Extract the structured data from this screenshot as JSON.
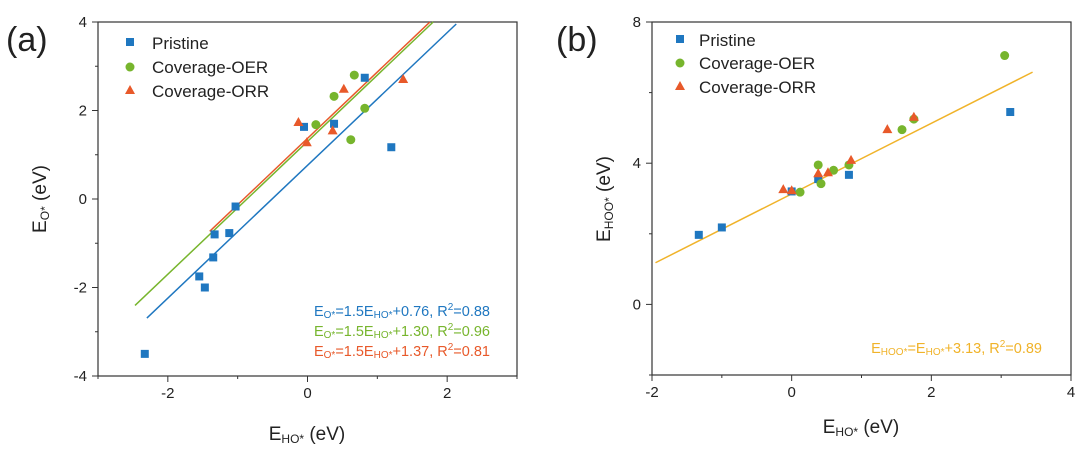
{
  "chart_data": [
    {
      "type": "scatter",
      "panel_label": "(a)",
      "xlabel": "E_HO* (eV)",
      "ylabel": "E_O* (eV)",
      "xlim": [
        -3,
        3
      ],
      "ylim": [
        -4,
        4
      ],
      "xticks": [
        -2,
        0,
        2
      ],
      "yticks": [
        -4,
        -2,
        0,
        2,
        4
      ],
      "series": [
        {
          "name": "Pristine",
          "marker": "square",
          "color": "#1f77c0",
          "points": [
            [
              -2.33,
              -3.5
            ],
            [
              -1.55,
              -1.75
            ],
            [
              -1.47,
              -2.0
            ],
            [
              -1.35,
              -1.32
            ],
            [
              -1.33,
              -0.8
            ],
            [
              -1.12,
              -0.77
            ],
            [
              -1.03,
              -0.17
            ],
            [
              -0.05,
              1.63
            ],
            [
              0.38,
              1.7
            ],
            [
              0.82,
              2.74
            ],
            [
              1.2,
              1.17
            ]
          ]
        },
        {
          "name": "Coverage-OER",
          "marker": "circle",
          "color": "#77b52d",
          "points": [
            [
              0.12,
              1.68
            ],
            [
              0.38,
              2.32
            ],
            [
              0.62,
              1.34
            ],
            [
              0.67,
              2.8
            ],
            [
              0.82,
              2.05
            ]
          ]
        },
        {
          "name": "Coverage-ORR",
          "marker": "triangle",
          "color": "#e8592a",
          "points": [
            [
              -0.13,
              1.73
            ],
            [
              -0.01,
              1.27
            ],
            [
              0.36,
              1.54
            ],
            [
              0.52,
              2.48
            ],
            [
              1.37,
              2.7
            ]
          ]
        }
      ],
      "fits": [
        {
          "series": "Pristine",
          "color": "#1f77c0",
          "x_range": [
            -2.3,
            2.13
          ],
          "slope": 1.5,
          "intercept": 0.76,
          "r2": 0.88
        },
        {
          "series": "Coverage-OER",
          "color": "#77b52d",
          "x_range": [
            -2.47,
            1.8
          ],
          "slope": 1.5,
          "intercept": 1.3,
          "r2": 0.96
        },
        {
          "series": "Coverage-ORR",
          "color": "#e8592a",
          "x_range": [
            -1.4,
            1.75
          ],
          "slope": 1.5,
          "intercept": 1.37,
          "r2": 0.81
        }
      ],
      "annotations": [
        {
          "color": "#1f77c0",
          "lhs": "E",
          "lhs_sub": "O*",
          "mid": "=1.5E",
          "mid_sub": "HO*",
          "tail": "+0.76, R",
          "sup": "2",
          "end": "=0.88"
        },
        {
          "color": "#77b52d",
          "lhs": "E",
          "lhs_sub": "O*",
          "mid": "=1.5E",
          "mid_sub": "HO*",
          "tail": "+1.30, R",
          "sup": "2",
          "end": "=0.96"
        },
        {
          "color": "#e8592a",
          "lhs": "E",
          "lhs_sub": "O*",
          "mid": "=1.5E",
          "mid_sub": "HO*",
          "tail": "+1.37, R",
          "sup": "2",
          "end": "=0.81"
        }
      ]
    },
    {
      "type": "scatter",
      "panel_label": "(b)",
      "xlabel": "E_HO* (eV)",
      "ylabel": "E_HOO* (eV)",
      "xlim": [
        -2,
        4
      ],
      "ylim": [
        -2,
        8
      ],
      "xticks": [
        -2,
        0,
        2,
        4
      ],
      "yticks": [
        0,
        4,
        8
      ],
      "series": [
        {
          "name": "Pristine",
          "marker": "square",
          "color": "#1f77c0",
          "points": [
            [
              -1.33,
              1.97
            ],
            [
              -1.0,
              2.18
            ],
            [
              0.0,
              3.2
            ],
            [
              0.38,
              3.55
            ],
            [
              0.82,
              3.67
            ],
            [
              3.13,
              5.45
            ]
          ]
        },
        {
          "name": "Coverage-OER",
          "marker": "circle",
          "color": "#77b52d",
          "points": [
            [
              0.12,
              3.18
            ],
            [
              0.38,
              3.95
            ],
            [
              0.42,
              3.42
            ],
            [
              0.6,
              3.8
            ],
            [
              0.82,
              3.95
            ],
            [
              1.58,
              4.95
            ],
            [
              1.75,
              5.25
            ],
            [
              3.05,
              7.05
            ]
          ]
        },
        {
          "name": "Coverage-ORR",
          "marker": "triangle",
          "color": "#e8592a",
          "points": [
            [
              -0.12,
              3.25
            ],
            [
              0.0,
              3.22
            ],
            [
              0.38,
              3.7
            ],
            [
              0.52,
              3.73
            ],
            [
              0.85,
              4.08
            ],
            [
              1.37,
              4.95
            ],
            [
              1.75,
              5.3
            ]
          ]
        }
      ],
      "fits": [
        {
          "series": "All",
          "color": "#f0b32a",
          "x_range": [
            -1.95,
            3.45
          ],
          "slope": 1.0,
          "intercept": 3.13,
          "r2": 0.89
        }
      ],
      "annotations": [
        {
          "color": "#f0b32a",
          "lhs": "E",
          "lhs_sub": "HOO*",
          "mid": "=E",
          "mid_sub": "HO*",
          "tail": "+3.13, R",
          "sup": "2",
          "end": "=0.89"
        }
      ]
    }
  ]
}
